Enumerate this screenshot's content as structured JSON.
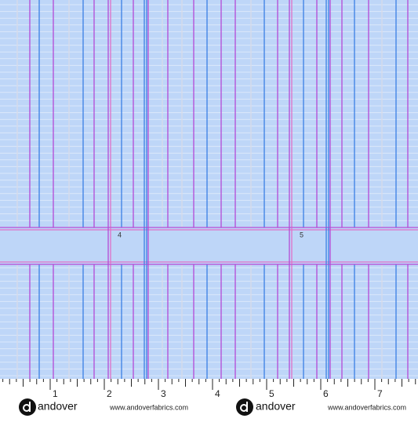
{
  "swatch": {
    "labels": [
      "4",
      "5"
    ]
  },
  "ruler": {
    "numbers": [
      "1",
      "2",
      "3",
      "4",
      "5",
      "6",
      "7"
    ]
  },
  "selvage": {
    "brand": "andover",
    "url": "www.andoverfabrics.com"
  }
}
